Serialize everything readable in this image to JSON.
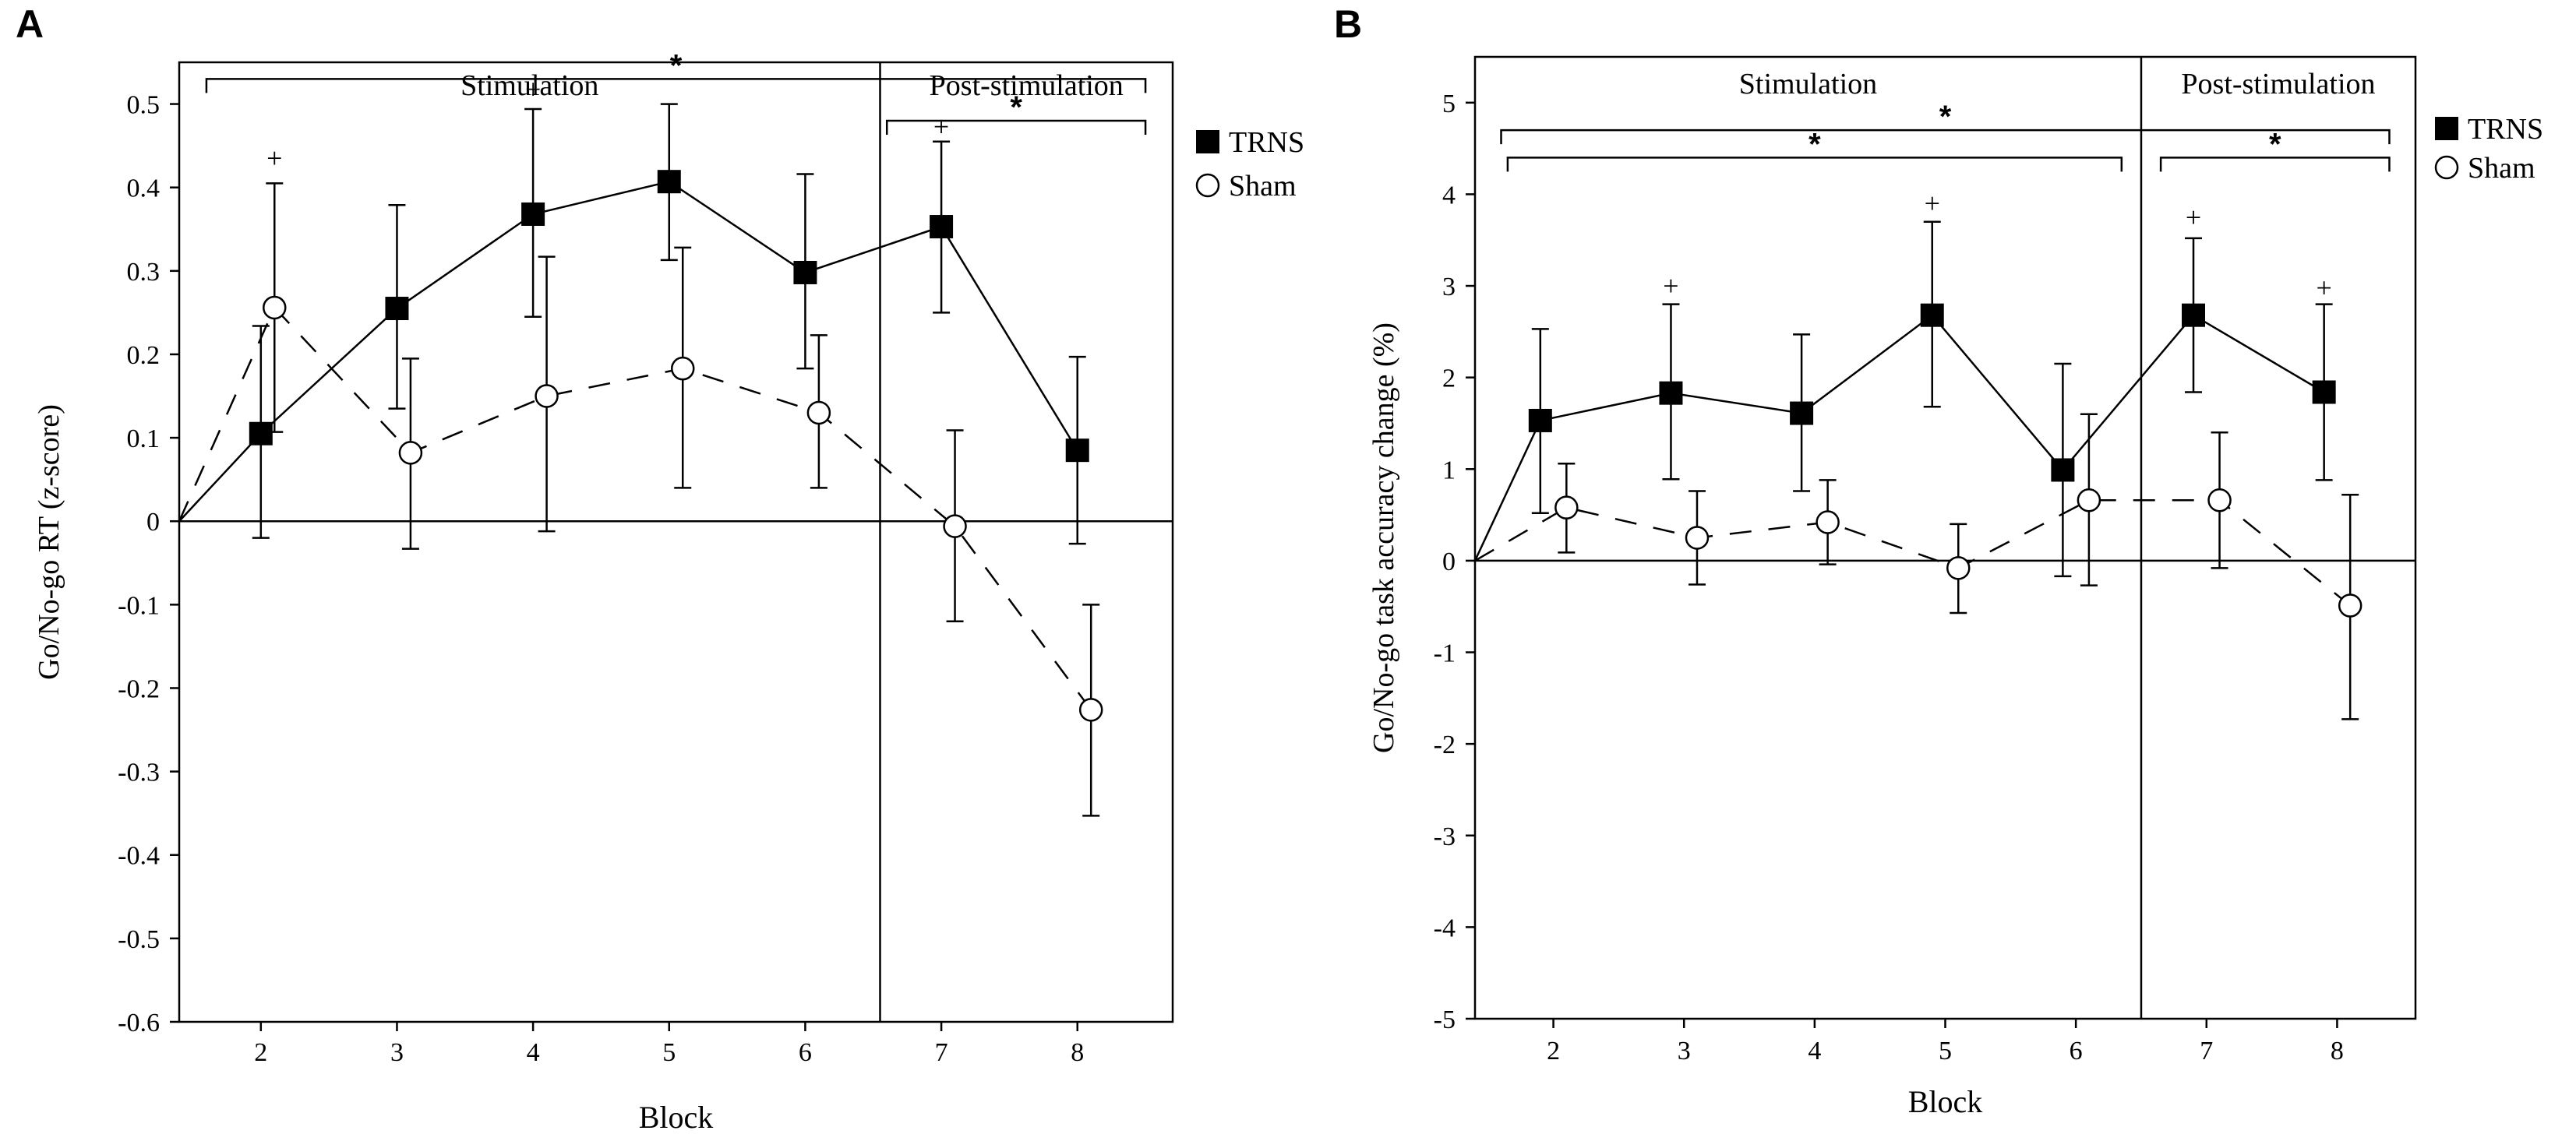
{
  "chart_data": [
    {
      "panel_label": "A",
      "type": "line",
      "xlabel": "Block",
      "ylabel": "Go/No-go RT (z-score)",
      "ylim": [
        -0.6,
        0.55
      ],
      "yticks": [
        -0.6,
        -0.5,
        -0.4,
        -0.3,
        -0.2,
        -0.1,
        0,
        0.1,
        0.2,
        0.3,
        0.4,
        0.5
      ],
      "ytick_labels": [
        "-0.6",
        "-0.5",
        "-0.4",
        "-0.3",
        "-0.2",
        "-0.1",
        "0",
        "0.1",
        "0.2",
        "0.3",
        "0.4",
        "0.5"
      ],
      "xlim": [
        1.4,
        8.7
      ],
      "categories": [
        "2",
        "3",
        "4",
        "5",
        "6",
        "7",
        "8"
      ],
      "regions": [
        {
          "label": "Stimulation",
          "from": 1.4,
          "to": 6.55
        },
        {
          "label": "Post-stimulation",
          "from": 6.55,
          "to": 8.7
        }
      ],
      "series": [
        {
          "name": "TRNS",
          "marker": "filled-square",
          "line": "solid",
          "color": "#000000",
          "x": [
            2,
            3,
            4,
            5,
            6,
            7,
            8
          ],
          "values": [
            0.105,
            0.255,
            0.368,
            0.407,
            0.298,
            0.353,
            0.085
          ],
          "err_low": [
            -0.02,
            0.135,
            0.245,
            0.313,
            0.183,
            0.25,
            -0.027
          ],
          "err_high": [
            0.234,
            0.379,
            0.494,
            0.5,
            0.416,
            0.455,
            0.197
          ]
        },
        {
          "name": "Sham",
          "marker": "open-circle",
          "line": "dashed",
          "color": "#000000",
          "x": [
            2.1,
            3.1,
            4.1,
            5.1,
            6.1,
            7.1,
            8.1
          ],
          "values": [
            0.256,
            0.082,
            0.15,
            0.183,
            0.13,
            -0.006,
            -0.226
          ],
          "err_low": [
            0.107,
            -0.033,
            -0.012,
            0.04,
            0.04,
            -0.12,
            -0.353
          ],
          "err_high": [
            0.405,
            0.195,
            0.317,
            0.328,
            0.223,
            0.109,
            -0.1
          ]
        }
      ],
      "brackets": [
        {
          "from": 1.6,
          "to": 8.5,
          "y": 0.53,
          "label": "*"
        },
        {
          "from": 6.6,
          "to": 8.5,
          "y": 0.48,
          "label": "*"
        }
      ],
      "annotations": [
        {
          "text": "+",
          "x": 2.1,
          "y": 0.435
        },
        {
          "text": "+",
          "x": 4.0,
          "y": 0.518
        },
        {
          "text": "+",
          "x": 7.0,
          "y": 0.473
        }
      ],
      "legend": {
        "position": "right",
        "entries": [
          "TRNS",
          "Sham"
        ]
      }
    },
    {
      "panel_label": "B",
      "type": "line",
      "xlabel": "Block",
      "ylabel": "Go/No-go task accuracy change (%)",
      "ylim": [
        -5,
        5.5
      ],
      "yticks": [
        -5,
        -4,
        -3,
        -2,
        -1,
        0,
        1,
        2,
        3,
        4,
        5
      ],
      "ytick_labels": [
        "-5",
        "-4",
        "-3",
        "-2",
        "-1",
        "0",
        "1",
        "2",
        "3",
        "4",
        "5"
      ],
      "xlim": [
        1.4,
        8.6
      ],
      "categories": [
        "2",
        "3",
        "4",
        "5",
        "6",
        "7",
        "8"
      ],
      "regions": [
        {
          "label": "Stimulation",
          "from": 1.4,
          "to": 6.5
        },
        {
          "label": "Post-stimulation",
          "from": 6.5,
          "to": 8.6
        }
      ],
      "series": [
        {
          "name": "TRNS",
          "marker": "filled-square",
          "line": "solid",
          "color": "#000000",
          "x": [
            1.9,
            2.9,
            3.9,
            4.9,
            5.9,
            6.9,
            7.9
          ],
          "values": [
            1.53,
            1.83,
            1.61,
            2.68,
            0.99,
            2.68,
            1.84
          ],
          "err_low": [
            0.52,
            0.89,
            0.76,
            1.68,
            -0.17,
            1.84,
            0.88
          ],
          "err_high": [
            2.53,
            2.8,
            2.47,
            3.7,
            2.15,
            3.52,
            2.8
          ]
        },
        {
          "name": "Sham",
          "marker": "open-circle",
          "line": "dashed",
          "color": "#000000",
          "x": [
            2.1,
            3.1,
            4.1,
            5.1,
            6.1,
            7.1,
            8.1
          ],
          "values": [
            0.58,
            0.25,
            0.42,
            -0.08,
            0.66,
            0.66,
            -0.49
          ],
          "err_low": [
            0.09,
            -0.26,
            -0.04,
            -0.57,
            -0.27,
            -0.08,
            -1.73
          ],
          "err_high": [
            1.06,
            0.76,
            0.88,
            0.4,
            1.6,
            1.4,
            0.72
          ]
        }
      ],
      "brackets": [
        {
          "from": 1.6,
          "to": 8.4,
          "y": 4.7,
          "label": "*"
        },
        {
          "from": 1.65,
          "to": 6.35,
          "y": 4.4,
          "label": "*"
        },
        {
          "from": 6.65,
          "to": 8.4,
          "y": 4.4,
          "label": "*"
        }
      ],
      "annotations": [
        {
          "text": "+",
          "x": 2.9,
          "y": 3.0
        },
        {
          "text": "+",
          "x": 4.9,
          "y": 3.9
        },
        {
          "text": "+",
          "x": 6.9,
          "y": 3.75
        },
        {
          "text": "+",
          "x": 7.9,
          "y": 2.98
        }
      ],
      "legend": {
        "position": "right",
        "entries": [
          "TRNS",
          "Sham"
        ]
      }
    }
  ]
}
